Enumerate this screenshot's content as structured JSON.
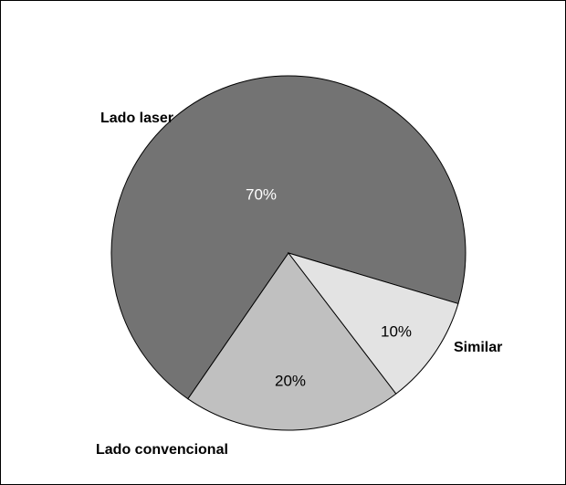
{
  "chart_data": {
    "type": "pie",
    "categories": [
      "Lado laser",
      "Lado convencional",
      "Similar"
    ],
    "values": [
      70,
      20,
      10
    ],
    "value_labels": [
      "70%",
      "20%",
      "10%"
    ],
    "colors": [
      "#737373",
      "#c0c0c0",
      "#e3e3e3"
    ]
  }
}
